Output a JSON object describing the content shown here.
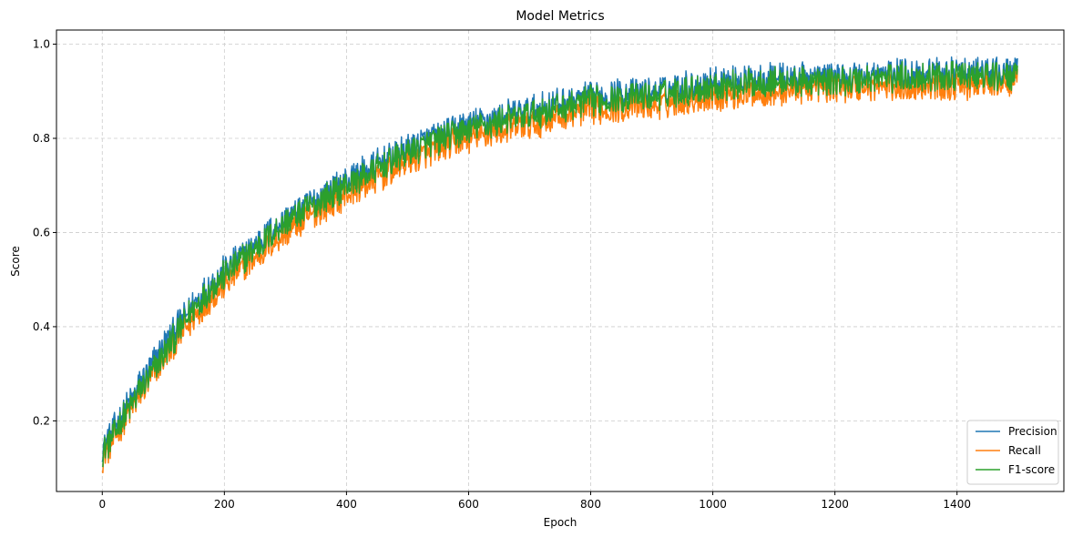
{
  "chart_data": {
    "type": "line",
    "title": "Model Metrics",
    "xlabel": "Epoch",
    "ylabel": "Score",
    "xlim": [
      -75,
      1575
    ],
    "ylim": [
      0.05,
      1.03
    ],
    "x_ticks": [
      0,
      200,
      400,
      600,
      800,
      1000,
      1200,
      1400
    ],
    "x_tick_labels": [
      "0",
      "200",
      "400",
      "600",
      "800",
      "1000",
      "1200",
      "1400"
    ],
    "y_ticks": [
      0.2,
      0.4,
      0.6,
      0.8,
      1.0
    ],
    "y_tick_labels": [
      "0.2",
      "0.4",
      "0.6",
      "0.8",
      "1.0"
    ],
    "grid": true,
    "grid_style": "dashed",
    "legend_position": "lower right",
    "x_range": [
      0,
      1499
    ],
    "approx_trend": {
      "x": [
        0,
        50,
        100,
        150,
        200,
        300,
        400,
        500,
        600,
        700,
        800,
        900,
        1000,
        1100,
        1200,
        1300,
        1400,
        1499
      ],
      "precision": [
        0.14,
        0.25,
        0.36,
        0.45,
        0.52,
        0.63,
        0.71,
        0.78,
        0.83,
        0.86,
        0.89,
        0.9,
        0.92,
        0.93,
        0.93,
        0.94,
        0.94,
        0.94
      ],
      "recall": [
        0.12,
        0.23,
        0.33,
        0.42,
        0.49,
        0.6,
        0.68,
        0.75,
        0.8,
        0.83,
        0.86,
        0.87,
        0.89,
        0.9,
        0.91,
        0.91,
        0.91,
        0.92
      ],
      "f1": [
        0.13,
        0.24,
        0.34,
        0.44,
        0.51,
        0.62,
        0.7,
        0.77,
        0.82,
        0.85,
        0.88,
        0.89,
        0.91,
        0.92,
        0.92,
        0.93,
        0.93,
        0.93
      ]
    },
    "noise_amplitude": 0.035,
    "series": [
      {
        "name": "Precision",
        "color": "#1f77b4",
        "key": "precision"
      },
      {
        "name": "Recall",
        "color": "#ff7f0e",
        "key": "recall"
      },
      {
        "name": "F1-score",
        "color": "#2ca02c",
        "key": "f1"
      }
    ]
  }
}
